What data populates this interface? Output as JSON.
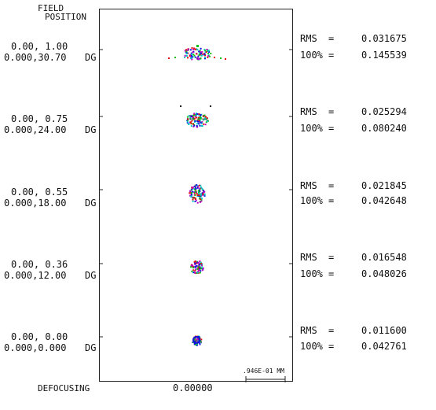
{
  "header": {
    "line1": "FIELD",
    "line2": "POSITION"
  },
  "fields": [
    {
      "pos_norm": "0.00, 1.00",
      "pos_angle": "0.000,30.70",
      "unit": "DG",
      "rms_label": "RMS",
      "rms_eq": "=",
      "rms_value": "0.031675",
      "full_label": "100%",
      "full_eq": "=",
      "full_value": "0.145539"
    },
    {
      "pos_norm": "0.00, 0.75",
      "pos_angle": "0.000,24.00",
      "unit": "DG",
      "rms_label": "RMS",
      "rms_eq": "=",
      "rms_value": "0.025294",
      "full_label": "100%",
      "full_eq": "=",
      "full_value": "0.080240"
    },
    {
      "pos_norm": "0.00, 0.55",
      "pos_angle": "0.000,18.00",
      "unit": "DG",
      "rms_label": "RMS",
      "rms_eq": "=",
      "rms_value": "0.021845",
      "full_label": "100%",
      "full_eq": "=",
      "full_value": "0.042648"
    },
    {
      "pos_norm": "0.00, 0.36",
      "pos_angle": "0.000,12.00",
      "unit": "DG",
      "rms_label": "RMS",
      "rms_eq": "=",
      "rms_value": "0.016548",
      "full_label": "100%",
      "full_eq": "=",
      "full_value": "0.048026"
    },
    {
      "pos_norm": "0.00, 0.00",
      "pos_angle": "0.000,0.000",
      "unit": "DG",
      "rms_label": "RMS",
      "rms_eq": "=",
      "rms_value": "0.011600",
      "full_label": "100%",
      "full_eq": "=",
      "full_value": "0.042761"
    }
  ],
  "scale_bar_label": ".946E-01 MM",
  "footer": {
    "defocusing_label": "DEFOCUSING",
    "defocusing_value": "0.00000"
  },
  "colors": [
    "#e01010",
    "#10c010",
    "#1010e0",
    "#00c8c8",
    "#c000c0",
    "#000000"
  ]
}
